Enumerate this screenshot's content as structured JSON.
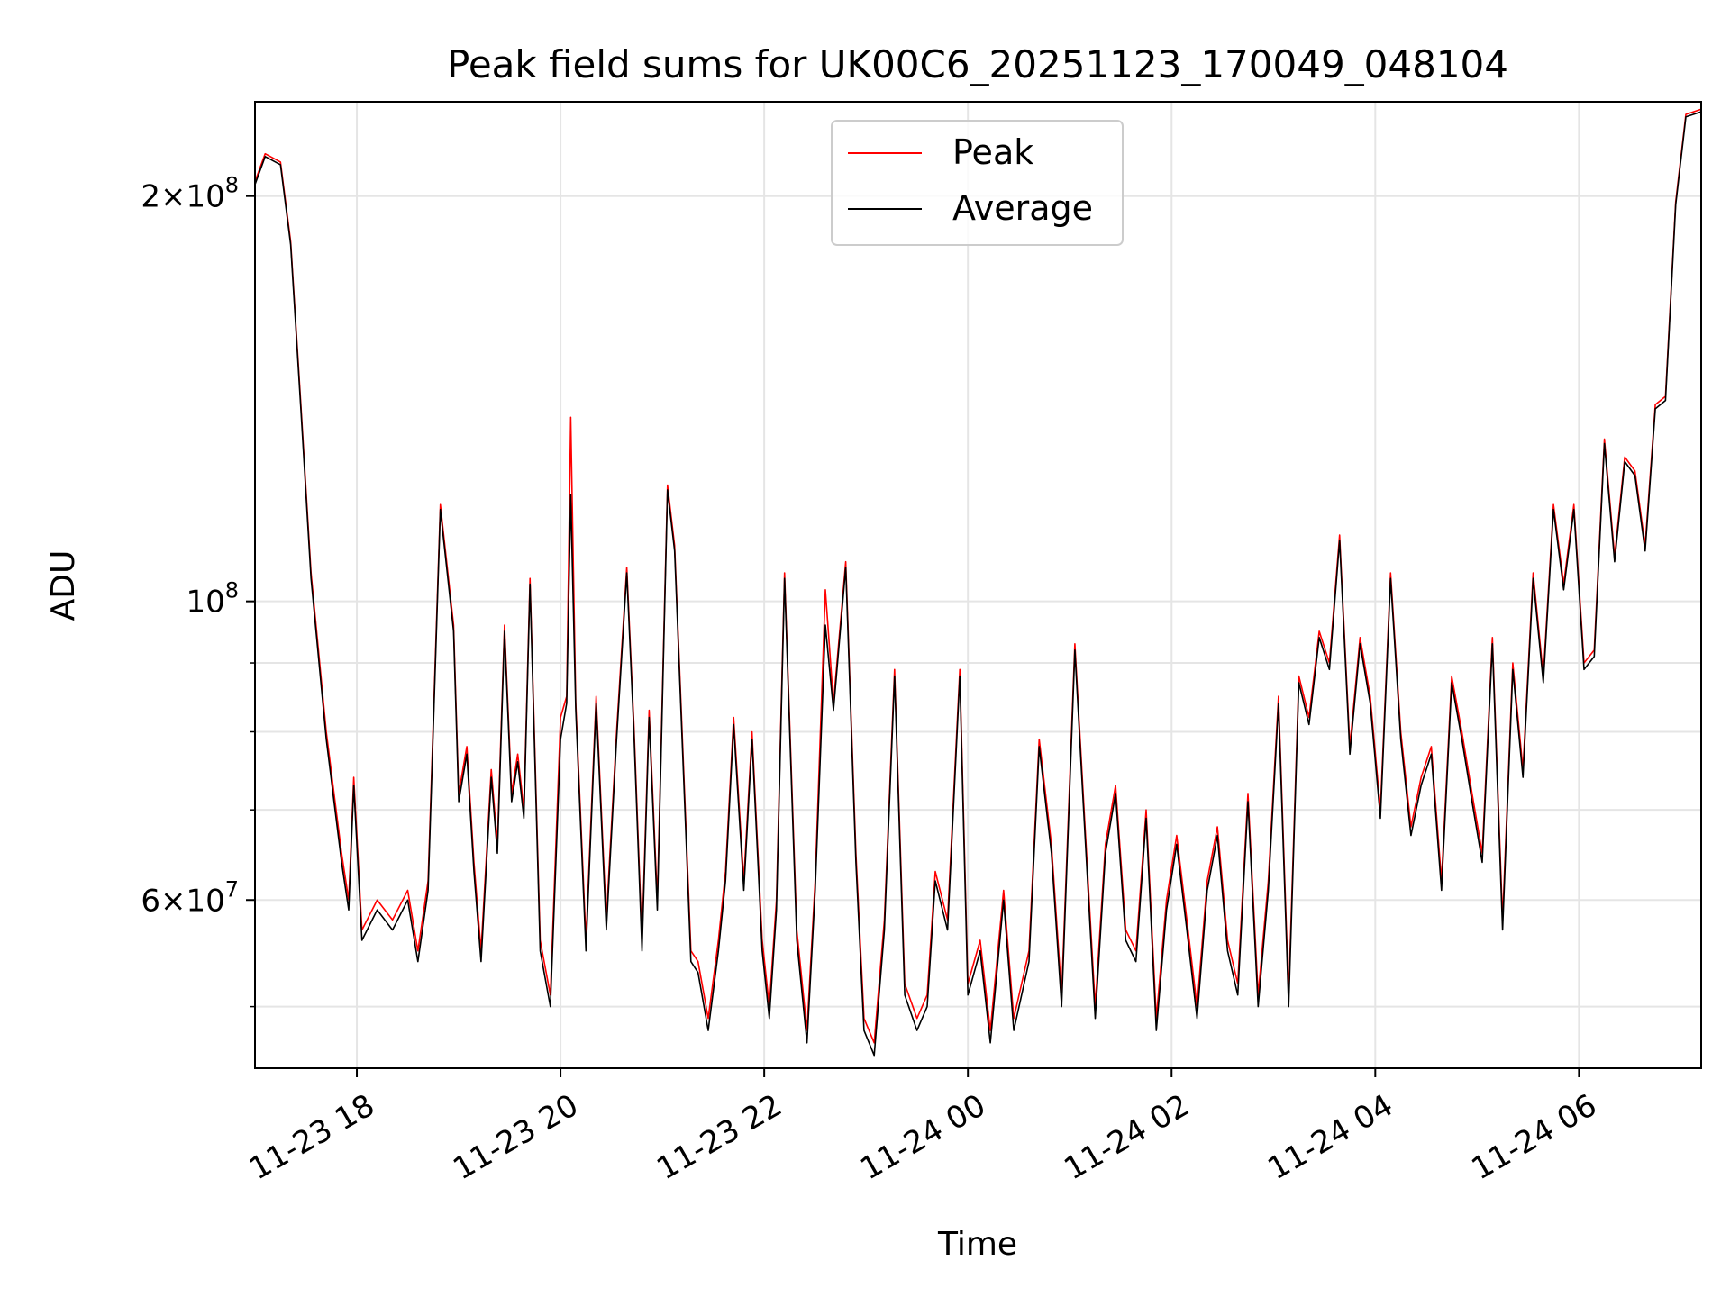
{
  "chart_data": {
    "type": "line",
    "title": "Peak field sums for UK00C6_20251123_170049_048104",
    "xlabel": "Time",
    "ylabel": "ADU",
    "yscale": "log",
    "xlim": [
      17.0,
      31.2
    ],
    "ylim": [
      45000000,
      235000000
    ],
    "grid": true,
    "legend_position": "top-center",
    "x_ticks": [
      {
        "value": 18,
        "label": "11-23 18"
      },
      {
        "value": 20,
        "label": "11-23 20"
      },
      {
        "value": 22,
        "label": "11-23 22"
      },
      {
        "value": 24,
        "label": "11-24 00"
      },
      {
        "value": 26,
        "label": "11-24 02"
      },
      {
        "value": 28,
        "label": "11-24 04"
      },
      {
        "value": 30,
        "label": "11-24 06"
      }
    ],
    "y_major_ticks": [
      {
        "value": 60000000,
        "mantissa": "6",
        "exponent": "7"
      },
      {
        "value": 100000000,
        "mantissa": "",
        "exponent": "8"
      },
      {
        "value": 200000000,
        "mantissa": "2",
        "exponent": "8"
      }
    ],
    "y_minor_ticks": [
      50000000,
      70000000,
      80000000,
      90000000
    ],
    "series": [
      {
        "name": "Peak",
        "color": "#ff0000",
        "x": [
          17.0,
          17.1,
          17.25,
          17.35,
          17.45,
          17.55,
          17.7,
          17.85,
          17.92,
          17.97,
          18.05,
          18.2,
          18.35,
          18.5,
          18.6,
          18.7,
          18.82,
          18.95,
          19.0,
          19.08,
          19.15,
          19.22,
          19.32,
          19.38,
          19.45,
          19.52,
          19.58,
          19.64,
          19.7,
          19.8,
          19.9,
          20.0,
          20.06,
          20.1,
          20.15,
          20.25,
          20.35,
          20.45,
          20.55,
          20.65,
          20.72,
          20.8,
          20.87,
          20.95,
          21.05,
          21.12,
          21.2,
          21.28,
          21.35,
          21.45,
          21.55,
          21.62,
          21.7,
          21.8,
          21.88,
          21.98,
          22.05,
          22.12,
          22.2,
          22.32,
          22.42,
          22.5,
          22.6,
          22.68,
          22.8,
          22.9,
          22.98,
          23.08,
          23.18,
          23.28,
          23.38,
          23.5,
          23.6,
          23.68,
          23.8,
          23.92,
          24.0,
          24.12,
          24.22,
          24.35,
          24.45,
          24.6,
          24.7,
          24.82,
          24.92,
          25.05,
          25.15,
          25.25,
          25.35,
          25.45,
          25.55,
          25.65,
          25.75,
          25.85,
          25.95,
          26.05,
          26.15,
          26.25,
          26.35,
          26.45,
          26.55,
          26.65,
          26.75,
          26.85,
          26.95,
          27.05,
          27.15,
          27.25,
          27.35,
          27.45,
          27.55,
          27.65,
          27.75,
          27.85,
          27.95,
          28.05,
          28.15,
          28.25,
          28.35,
          28.45,
          28.55,
          28.65,
          28.75,
          28.85,
          28.95,
          29.05,
          29.15,
          29.25,
          29.35,
          29.45,
          29.55,
          29.65,
          29.75,
          29.85,
          29.95,
          30.05,
          30.15,
          30.25,
          30.35,
          30.45,
          30.55,
          30.65,
          30.75,
          30.85,
          30.95,
          31.05,
          31.2
        ],
        "y": [
          205000000,
          215000000,
          212000000,
          185000000,
          140000000,
          105000000,
          80000000,
          65000000,
          60000000,
          74000000,
          57000000,
          60000000,
          58000000,
          61000000,
          55000000,
          62000000,
          118000000,
          96000000,
          72000000,
          78000000,
          64000000,
          55000000,
          75000000,
          66000000,
          96000000,
          72000000,
          77000000,
          70000000,
          104000000,
          56000000,
          51000000,
          82000000,
          85000000,
          137000000,
          84000000,
          56000000,
          85000000,
          58000000,
          80000000,
          106000000,
          81000000,
          56000000,
          83000000,
          60000000,
          122000000,
          110000000,
          78000000,
          55000000,
          54000000,
          49000000,
          56000000,
          63000000,
          82000000,
          62000000,
          80000000,
          56000000,
          50000000,
          60000000,
          105000000,
          57000000,
          48000000,
          62000000,
          102000000,
          84000000,
          107000000,
          65000000,
          49000000,
          47000000,
          58000000,
          89000000,
          52000000,
          49000000,
          51000000,
          63000000,
          58000000,
          89000000,
          52000000,
          56000000,
          48000000,
          61000000,
          49000000,
          55000000,
          79000000,
          66000000,
          51000000,
          93000000,
          68000000,
          50000000,
          66000000,
          73000000,
          57000000,
          55000000,
          70000000,
          49000000,
          60000000,
          67000000,
          58000000,
          50000000,
          62000000,
          68000000,
          56000000,
          52000000,
          72000000,
          51000000,
          62000000,
          85000000,
          51000000,
          88000000,
          82000000,
          95000000,
          90000000,
          112000000,
          78000000,
          94000000,
          85000000,
          70000000,
          105000000,
          80000000,
          68000000,
          74000000,
          78000000,
          62000000,
          88000000,
          80000000,
          72000000,
          65000000,
          94000000,
          58000000,
          90000000,
          75000000,
          105000000,
          88000000,
          118000000,
          103000000,
          118000000,
          90000000,
          92000000,
          132000000,
          108000000,
          128000000,
          125000000,
          110000000,
          140000000,
          142000000,
          198000000,
          230000000,
          232000000
        ]
      },
      {
        "name": "Average",
        "color": "#000000",
        "x": [
          17.0,
          17.1,
          17.25,
          17.35,
          17.45,
          17.55,
          17.7,
          17.85,
          17.92,
          17.97,
          18.05,
          18.2,
          18.35,
          18.5,
          18.6,
          18.7,
          18.82,
          18.95,
          19.0,
          19.08,
          19.15,
          19.22,
          19.32,
          19.38,
          19.45,
          19.52,
          19.58,
          19.64,
          19.7,
          19.8,
          19.9,
          20.0,
          20.06,
          20.1,
          20.15,
          20.25,
          20.35,
          20.45,
          20.55,
          20.65,
          20.72,
          20.8,
          20.87,
          20.95,
          21.05,
          21.12,
          21.2,
          21.28,
          21.35,
          21.45,
          21.55,
          21.62,
          21.7,
          21.8,
          21.88,
          21.98,
          22.05,
          22.12,
          22.2,
          22.32,
          22.42,
          22.5,
          22.6,
          22.68,
          22.8,
          22.9,
          22.98,
          23.08,
          23.18,
          23.28,
          23.38,
          23.5,
          23.6,
          23.68,
          23.8,
          23.92,
          24.0,
          24.12,
          24.22,
          24.35,
          24.45,
          24.6,
          24.7,
          24.82,
          24.92,
          25.05,
          25.15,
          25.25,
          25.35,
          25.45,
          25.55,
          25.65,
          25.75,
          25.85,
          25.95,
          26.05,
          26.15,
          26.25,
          26.35,
          26.45,
          26.55,
          26.65,
          26.75,
          26.85,
          26.95,
          27.05,
          27.15,
          27.25,
          27.35,
          27.45,
          27.55,
          27.65,
          27.75,
          27.85,
          27.95,
          28.05,
          28.15,
          28.25,
          28.35,
          28.45,
          28.55,
          28.65,
          28.75,
          28.85,
          28.95,
          29.05,
          29.15,
          29.25,
          29.35,
          29.45,
          29.55,
          29.65,
          29.75,
          29.85,
          29.95,
          30.05,
          30.15,
          30.25,
          30.35,
          30.45,
          30.55,
          30.65,
          30.75,
          30.85,
          30.95,
          31.05,
          31.2
        ],
        "y": [
          204000000,
          214000000,
          211000000,
          184000000,
          139000000,
          104000000,
          79000000,
          64000000,
          59000000,
          73000000,
          56000000,
          59000000,
          57000000,
          60000000,
          54000000,
          61000000,
          117000000,
          95000000,
          71000000,
          77000000,
          63000000,
          54000000,
          74000000,
          65000000,
          95000000,
          71000000,
          76000000,
          69000000,
          103000000,
          55000000,
          50000000,
          79000000,
          84000000,
          120000000,
          83000000,
          55000000,
          84000000,
          57000000,
          79000000,
          105000000,
          80000000,
          55000000,
          82000000,
          59000000,
          121000000,
          109000000,
          77000000,
          54000000,
          53000000,
          48000000,
          55000000,
          62000000,
          81000000,
          61000000,
          79000000,
          55000000,
          49000000,
          59000000,
          104000000,
          56000000,
          47000000,
          61000000,
          96000000,
          83000000,
          106000000,
          64000000,
          48000000,
          46000000,
          57000000,
          88000000,
          51000000,
          48000000,
          50000000,
          62000000,
          57000000,
          88000000,
          51000000,
          55000000,
          47000000,
          60000000,
          48000000,
          54000000,
          78000000,
          65000000,
          50000000,
          92000000,
          67000000,
          49000000,
          65000000,
          72000000,
          56000000,
          54000000,
          69000000,
          48000000,
          59000000,
          66000000,
          57000000,
          49000000,
          61000000,
          67000000,
          55000000,
          51000000,
          71000000,
          50000000,
          61000000,
          84000000,
          50000000,
          87000000,
          81000000,
          94000000,
          89000000,
          111000000,
          77000000,
          93000000,
          84000000,
          69000000,
          104000000,
          79000000,
          67000000,
          73000000,
          77000000,
          61000000,
          87000000,
          79000000,
          71000000,
          64000000,
          93000000,
          57000000,
          89000000,
          74000000,
          104000000,
          87000000,
          117000000,
          102000000,
          117000000,
          89000000,
          91000000,
          131000000,
          107000000,
          127000000,
          124000000,
          109000000,
          139000000,
          141000000,
          197000000,
          229000000,
          231000000
        ]
      }
    ]
  }
}
